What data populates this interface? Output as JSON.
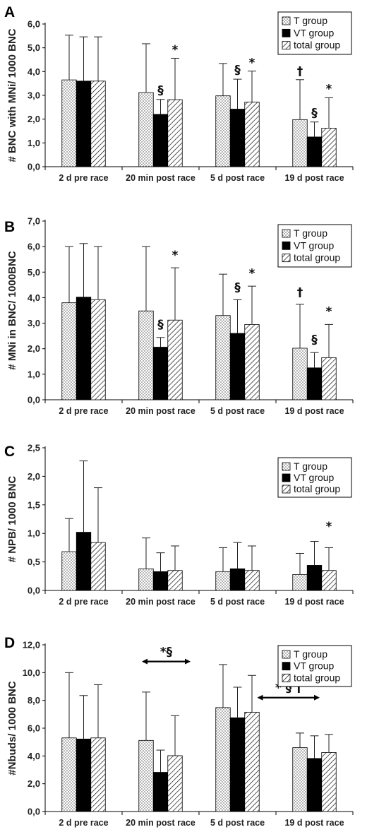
{
  "colors": {
    "T group": "#ffffff",
    "VT group": "#000000",
    "total group": "#ffffff"
  },
  "chart_data": [
    {
      "panel_label": "A",
      "type": "bar",
      "categories": [
        "2 d pre race",
        "20 min post race",
        "5 d post race",
        "19 d post race"
      ],
      "ylabel": "# BNC with MNi/ 1000 BNC",
      "ylim": [
        0,
        6
      ],
      "yticks": [
        "0,0",
        "1,0",
        "2,0",
        "3,0",
        "4,0",
        "5,0",
        "6,0"
      ],
      "legend": [
        "T group",
        "VT group",
        "total group"
      ],
      "legend_position": "top-right",
      "series": [
        {
          "name": "T group",
          "pattern": "dots",
          "values": [
            3.65,
            3.12,
            2.98,
            1.98
          ],
          "errors": [
            1.88,
            2.05,
            1.36,
            1.68
          ]
        },
        {
          "name": "VT group",
          "pattern": "solid",
          "values": [
            3.6,
            2.2,
            2.42,
            1.25
          ],
          "errors": [
            1.86,
            0.63,
            1.26,
            0.63
          ]
        },
        {
          "name": "total group",
          "pattern": "hatch",
          "values": [
            3.6,
            2.82,
            2.72,
            1.62
          ],
          "errors": [
            1.86,
            1.74,
            1.3,
            1.28
          ]
        }
      ],
      "annotations": [
        {
          "text": "§",
          "category": 1,
          "series": 1,
          "y": 3.05
        },
        {
          "text": "*",
          "category": 1,
          "series": 2,
          "y": 4.75
        },
        {
          "text": "§",
          "category": 2,
          "series": 1,
          "y": 3.9
        },
        {
          "text": "*",
          "category": 2,
          "series": 2,
          "y": 4.2
        },
        {
          "text": "†",
          "category": 3,
          "series": 0,
          "y": 3.85
        },
        {
          "text": "§",
          "category": 3,
          "series": 1,
          "y": 2.1
        },
        {
          "text": "*",
          "category": 3,
          "series": 2,
          "y": 3.1
        }
      ]
    },
    {
      "panel_label": "B",
      "type": "bar",
      "categories": [
        "2 d pre race",
        "20 min post race",
        "5 d post race",
        "19 d post race"
      ],
      "ylabel": "# MNi in BNC/ 1000BNC",
      "ylim": [
        0,
        7
      ],
      "yticks": [
        "0,0",
        "1,0",
        "2,0",
        "3,0",
        "4,0",
        "5,0",
        "6,0",
        "7,0"
      ],
      "legend": [
        "T group",
        "VT group",
        "total group"
      ],
      "legend_position": "top-right",
      "series": [
        {
          "name": "T group",
          "pattern": "dots",
          "values": [
            3.8,
            3.48,
            3.3,
            2.02
          ],
          "errors": [
            2.2,
            2.52,
            1.62,
            1.72
          ]
        },
        {
          "name": "VT group",
          "pattern": "solid",
          "values": [
            4.02,
            2.06,
            2.6,
            1.25
          ],
          "errors": [
            2.1,
            0.38,
            1.32,
            0.6
          ]
        },
        {
          "name": "total group",
          "pattern": "hatch",
          "values": [
            3.92,
            3.12,
            2.95,
            1.65
          ],
          "errors": [
            2.08,
            2.05,
            1.5,
            1.3
          ]
        }
      ],
      "annotations": [
        {
          "text": "§",
          "category": 1,
          "series": 1,
          "y": 2.8
        },
        {
          "text": "*",
          "category": 1,
          "series": 2,
          "y": 5.5
        },
        {
          "text": "§",
          "category": 2,
          "series": 1,
          "y": 4.25
        },
        {
          "text": "*",
          "category": 2,
          "series": 2,
          "y": 4.8
        },
        {
          "text": "†",
          "category": 3,
          "series": 0,
          "y": 4.05
        },
        {
          "text": "§",
          "category": 3,
          "series": 1,
          "y": 2.2
        },
        {
          "text": "*",
          "category": 3,
          "series": 2,
          "y": 3.3
        }
      ]
    },
    {
      "panel_label": "C",
      "type": "bar",
      "categories": [
        "2 d pre race",
        "20 min post race",
        "5 d post race",
        "19 d post race"
      ],
      "ylabel": "# NPB/ 1000 BNC",
      "ylim": [
        0,
        2.5
      ],
      "yticks": [
        "0,0",
        "0,5",
        "1,0",
        "1,5",
        "2,0",
        "2,5"
      ],
      "legend": [
        "T group",
        "VT group",
        "total group"
      ],
      "legend_position": "top-right",
      "series": [
        {
          "name": "T group",
          "pattern": "dots",
          "values": [
            0.68,
            0.38,
            0.33,
            0.28
          ],
          "errors": [
            0.58,
            0.54,
            0.42,
            0.37
          ]
        },
        {
          "name": "VT group",
          "pattern": "solid",
          "values": [
            1.02,
            0.33,
            0.38,
            0.44
          ],
          "errors": [
            1.25,
            0.33,
            0.46,
            0.42
          ]
        },
        {
          "name": "total group",
          "pattern": "hatch",
          "values": [
            0.84,
            0.35,
            0.35,
            0.35
          ],
          "errors": [
            0.96,
            0.43,
            0.43,
            0.4
          ]
        }
      ],
      "annotations": [
        {
          "text": "*",
          "category": 3,
          "series": 2,
          "y": 1.05
        }
      ]
    },
    {
      "panel_label": "D",
      "type": "bar",
      "categories": [
        "2 d pre race",
        "20 min post race",
        "5 d post race",
        "19 d post race"
      ],
      "ylabel": "#Nbuds/ 1000 BNC",
      "ylim": [
        0,
        12
      ],
      "yticks": [
        "0,0",
        "2,0",
        "4,0",
        "6,0",
        "8,0",
        "10,0",
        "12,0"
      ],
      "legend": [
        "T group",
        "VT group",
        "total group"
      ],
      "legend_position": "top-right",
      "series": [
        {
          "name": "T group",
          "pattern": "dots",
          "values": [
            5.3,
            5.12,
            7.48,
            4.6
          ],
          "errors": [
            4.7,
            3.48,
            3.1,
            1.05
          ]
        },
        {
          "name": "VT group",
          "pattern": "solid",
          "values": [
            5.22,
            2.82,
            6.75,
            3.82
          ],
          "errors": [
            3.13,
            1.6,
            2.2,
            1.63
          ]
        },
        {
          "name": "total group",
          "pattern": "hatch",
          "values": [
            5.3,
            4.02,
            7.15,
            4.25
          ],
          "errors": [
            3.83,
            2.88,
            2.65,
            1.3
          ]
        }
      ],
      "brackets": [
        {
          "label": "*§",
          "from_category": 1,
          "to_category": 2,
          "y": 10.8
        },
        {
          "label": "* § †",
          "from_category": 2.5,
          "to_category": 3.55,
          "y": 8.2
        }
      ]
    }
  ]
}
